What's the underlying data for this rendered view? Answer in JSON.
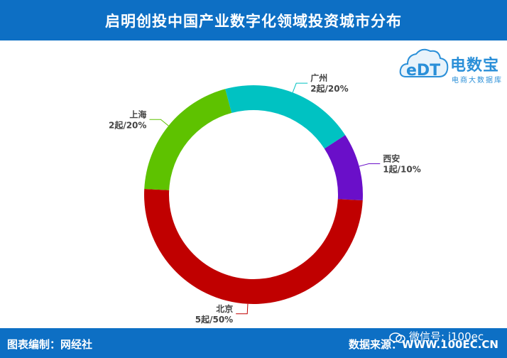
{
  "header": {
    "title": "启明创投中国产业数字化领域投资城市分布"
  },
  "logo": {
    "brand": "电数宝",
    "sub": "电商大数据库",
    "mark": "eDT"
  },
  "footer": {
    "credit": "图表编制：网经社",
    "source": "数据来源：WWW.100EC.CN",
    "wechat": "微信号: i100ec"
  },
  "chart_data": {
    "type": "pie",
    "donut": true,
    "title": "启明创投中国产业数字化领域投资城市分布",
    "slices": [
      {
        "name": "西安",
        "value": 1,
        "label": "1起/10%",
        "color": "#6a0fc9"
      },
      {
        "name": "北京",
        "value": 5,
        "label": "5起/50%",
        "color": "#c00000"
      },
      {
        "name": "上海",
        "value": 2,
        "label": "2起/20%",
        "color": "#5ec200"
      },
      {
        "name": "广州",
        "value": 2,
        "label": "2起/20%",
        "color": "#00c2c2"
      }
    ]
  }
}
